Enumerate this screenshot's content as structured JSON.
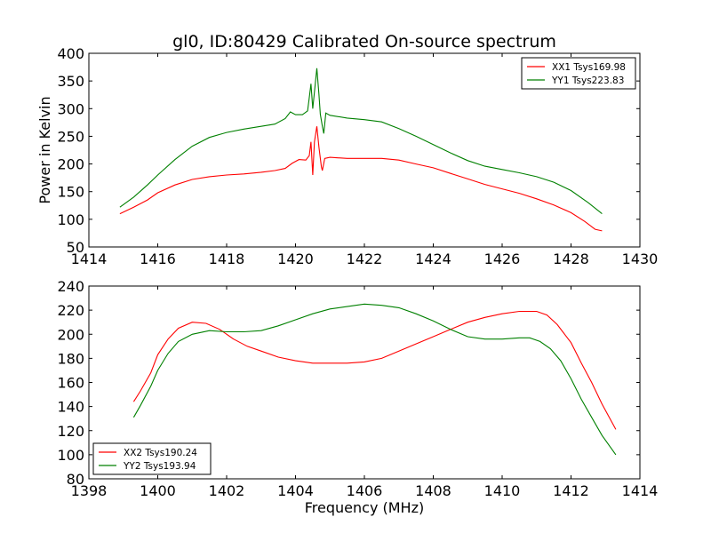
{
  "chart_data": [
    {
      "type": "line",
      "title": "gl0, ID:80429 Calibrated On-source spectrum",
      "xlabel": "",
      "ylabel": "Power in Kelvin",
      "xlim": [
        1414,
        1430
      ],
      "ylim": [
        50,
        400
      ],
      "xticks": [
        "1414",
        "1416",
        "1418",
        "1420",
        "1422",
        "1424",
        "1426",
        "1428",
        "1430"
      ],
      "yticks": [
        "50",
        "100",
        "150",
        "200",
        "250",
        "300",
        "350",
        "400"
      ],
      "grid": false,
      "legend_position": "top-right",
      "series": [
        {
          "name": "XX1 Tsys169.98",
          "color": "#ff0000",
          "points": [
            [
              1414.9,
              110
            ],
            [
              1415.3,
              122
            ],
            [
              1415.7,
              135
            ],
            [
              1416.0,
              148
            ],
            [
              1416.5,
              162
            ],
            [
              1417.0,
              172
            ],
            [
              1417.5,
              177
            ],
            [
              1418.0,
              180
            ],
            [
              1418.5,
              182
            ],
            [
              1419.0,
              185
            ],
            [
              1419.4,
              188
            ],
            [
              1419.7,
              192
            ],
            [
              1419.9,
              201
            ],
            [
              1420.1,
              208
            ],
            [
              1420.3,
              207
            ],
            [
              1420.4,
              215
            ],
            [
              1420.45,
              240
            ],
            [
              1420.5,
              180
            ],
            [
              1420.55,
              240
            ],
            [
              1420.62,
              268
            ],
            [
              1420.68,
              230
            ],
            [
              1420.75,
              195
            ],
            [
              1420.78,
              188
            ],
            [
              1420.85,
              210
            ],
            [
              1421.0,
              212
            ],
            [
              1421.5,
              210
            ],
            [
              1422.0,
              210
            ],
            [
              1422.5,
              210
            ],
            [
              1423.0,
              207
            ],
            [
              1423.5,
              200
            ],
            [
              1424.0,
              193
            ],
            [
              1424.5,
              183
            ],
            [
              1425.0,
              173
            ],
            [
              1425.5,
              163
            ],
            [
              1426.0,
              155
            ],
            [
              1426.5,
              147
            ],
            [
              1427.0,
              137
            ],
            [
              1427.5,
              126
            ],
            [
              1428.0,
              112
            ],
            [
              1428.4,
              96
            ],
            [
              1428.7,
              82
            ],
            [
              1428.9,
              79
            ]
          ]
        },
        {
          "name": "YY1 Tsys223.83",
          "color": "#008000",
          "points": [
            [
              1414.9,
              122
            ],
            [
              1415.3,
              140
            ],
            [
              1415.7,
              162
            ],
            [
              1416.0,
              180
            ],
            [
              1416.5,
              208
            ],
            [
              1417.0,
              232
            ],
            [
              1417.5,
              248
            ],
            [
              1418.0,
              257
            ],
            [
              1418.5,
              263
            ],
            [
              1419.0,
              268
            ],
            [
              1419.4,
              272
            ],
            [
              1419.7,
              282
            ],
            [
              1419.85,
              294
            ],
            [
              1420.0,
              289
            ],
            [
              1420.2,
              289
            ],
            [
              1420.35,
              296
            ],
            [
              1420.4,
              320
            ],
            [
              1420.45,
              345
            ],
            [
              1420.5,
              300
            ],
            [
              1420.55,
              330
            ],
            [
              1420.62,
              373
            ],
            [
              1420.68,
              325
            ],
            [
              1420.72,
              290
            ],
            [
              1420.78,
              268
            ],
            [
              1420.82,
              255
            ],
            [
              1420.88,
              292
            ],
            [
              1421.0,
              288
            ],
            [
              1421.5,
              283
            ],
            [
              1422.0,
              280
            ],
            [
              1422.5,
              276
            ],
            [
              1423.0,
              264
            ],
            [
              1423.5,
              250
            ],
            [
              1424.0,
              235
            ],
            [
              1424.5,
              220
            ],
            [
              1425.0,
              206
            ],
            [
              1425.5,
              196
            ],
            [
              1426.0,
              190
            ],
            [
              1426.5,
              184
            ],
            [
              1427.0,
              177
            ],
            [
              1427.5,
              167
            ],
            [
              1428.0,
              152
            ],
            [
              1428.5,
              130
            ],
            [
              1428.9,
              110
            ]
          ]
        }
      ]
    },
    {
      "type": "line",
      "title": "",
      "xlabel": "Frequency (MHz)",
      "ylabel": "",
      "xlim": [
        1398,
        1414
      ],
      "ylim": [
        80,
        240
      ],
      "xticks": [
        "1398",
        "1400",
        "1402",
        "1404",
        "1406",
        "1408",
        "1410",
        "1412",
        "1414"
      ],
      "yticks": [
        "80",
        "100",
        "120",
        "140",
        "160",
        "180",
        "200",
        "220",
        "240"
      ],
      "grid": false,
      "legend_position": "bottom-left",
      "series": [
        {
          "name": "XX2 Tsys190.24",
          "color": "#ff0000",
          "points": [
            [
              1399.3,
              144
            ],
            [
              1399.5,
              153
            ],
            [
              1399.8,
              168
            ],
            [
              1400.0,
              183
            ],
            [
              1400.3,
              196
            ],
            [
              1400.6,
              205
            ],
            [
              1401.0,
              210
            ],
            [
              1401.4,
              209
            ],
            [
              1401.8,
              204
            ],
            [
              1402.2,
              196
            ],
            [
              1402.6,
              190
            ],
            [
              1403.0,
              186
            ],
            [
              1403.5,
              181
            ],
            [
              1404.0,
              178
            ],
            [
              1404.5,
              176
            ],
            [
              1405.0,
              176
            ],
            [
              1405.5,
              176
            ],
            [
              1406.0,
              177
            ],
            [
              1406.5,
              180
            ],
            [
              1407.0,
              186
            ],
            [
              1407.5,
              192
            ],
            [
              1408.0,
              198
            ],
            [
              1408.5,
              204
            ],
            [
              1409.0,
              210
            ],
            [
              1409.5,
              214
            ],
            [
              1410.0,
              217
            ],
            [
              1410.5,
              219
            ],
            [
              1410.8,
              219
            ],
            [
              1411.0,
              219
            ],
            [
              1411.3,
              216
            ],
            [
              1411.6,
              208
            ],
            [
              1412.0,
              193
            ],
            [
              1412.3,
              176
            ],
            [
              1412.6,
              160
            ],
            [
              1412.9,
              142
            ],
            [
              1413.3,
              121
            ]
          ]
        },
        {
          "name": "YY2 Tsys193.94",
          "color": "#008000",
          "points": [
            [
              1399.3,
              131
            ],
            [
              1399.5,
              141
            ],
            [
              1399.8,
              157
            ],
            [
              1400.0,
              170
            ],
            [
              1400.3,
              184
            ],
            [
              1400.6,
              194
            ],
            [
              1401.0,
              200
            ],
            [
              1401.5,
              203
            ],
            [
              1402.0,
              202
            ],
            [
              1402.5,
              202
            ],
            [
              1403.0,
              203
            ],
            [
              1403.5,
              207
            ],
            [
              1404.0,
              212
            ],
            [
              1404.5,
              217
            ],
            [
              1405.0,
              221
            ],
            [
              1405.5,
              223
            ],
            [
              1406.0,
              225
            ],
            [
              1406.5,
              224
            ],
            [
              1407.0,
              222
            ],
            [
              1407.5,
              217
            ],
            [
              1408.0,
              211
            ],
            [
              1408.5,
              204
            ],
            [
              1409.0,
              198
            ],
            [
              1409.5,
              196
            ],
            [
              1410.0,
              196
            ],
            [
              1410.5,
              197
            ],
            [
              1410.8,
              197
            ],
            [
              1411.1,
              194
            ],
            [
              1411.4,
              188
            ],
            [
              1411.7,
              178
            ],
            [
              1412.0,
              163
            ],
            [
              1412.3,
              146
            ],
            [
              1412.6,
              131
            ],
            [
              1412.9,
              116
            ],
            [
              1413.3,
              100
            ]
          ]
        }
      ]
    }
  ]
}
